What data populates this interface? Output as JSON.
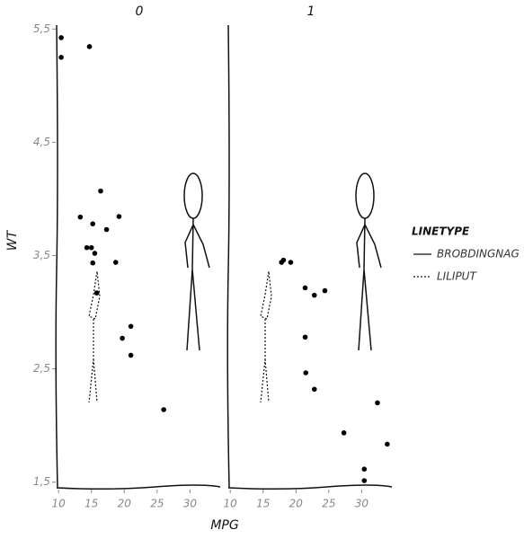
{
  "chart_data": {
    "type": "scatter",
    "x_label": "MPG",
    "y_label": "WT",
    "xlim": [
      9.7,
      34.6
    ],
    "xticks": [
      10,
      15,
      20,
      25,
      30
    ],
    "ylim": [
      1.45,
      5.55
    ],
    "yticks": [
      {
        "value": 1.5,
        "label": "1,5"
      },
      {
        "value": 2.5,
        "label": "2,5"
      },
      {
        "value": 3.5,
        "label": "3,5"
      },
      {
        "value": 4.5,
        "label": "4,5"
      },
      {
        "value": 5.5,
        "label": "5,5"
      }
    ],
    "point_color": "#000000",
    "facets": [
      {
        "title": "0",
        "x": [
          21,
          21,
          18.7,
          14.3,
          16.4,
          17.3,
          15.2,
          10.4,
          10.4,
          14.7,
          15.5,
          15.2,
          13.3,
          19.2,
          26,
          15.8,
          19.7,
          15
        ],
        "y": [
          2.62,
          2.875,
          3.44,
          3.57,
          4.07,
          3.73,
          3.78,
          5.25,
          5.424,
          5.345,
          3.52,
          3.435,
          3.84,
          3.845,
          2.14,
          3.17,
          2.77,
          3.57
        ]
      },
      {
        "title": "1",
        "x": [
          22.8,
          21.4,
          18.1,
          24.4,
          22.8,
          19.2,
          17.8,
          32.4,
          30.4,
          33.9,
          21.5,
          27.3,
          30.4,
          21.4
        ],
        "y": [
          2.32,
          3.215,
          3.46,
          3.19,
          3.15,
          3.44,
          3.44,
          2.2,
          1.615,
          1.835,
          2.465,
          1.935,
          1.513,
          2.78
        ]
      }
    ],
    "legend": {
      "title": "LINETYPE",
      "entries": [
        {
          "name": "BROBDINGNAG",
          "linetype": "solid"
        },
        {
          "name": "LILIPUT",
          "linetype": "dotted"
        }
      ]
    }
  }
}
